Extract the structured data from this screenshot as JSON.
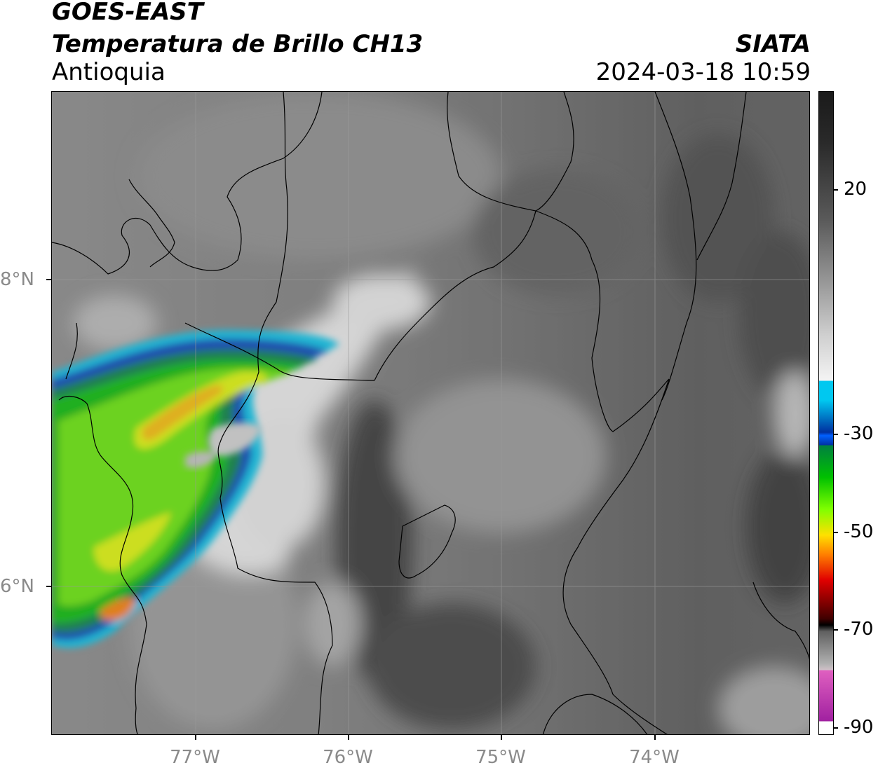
{
  "header": {
    "satellite": "GOES-EAST",
    "product": "Temperatura de Brillo CH13",
    "region": "Antioquia",
    "agency": "SIATA",
    "datetime": "2024-03-18 10:59"
  },
  "map": {
    "lat_labels": [
      "8°N",
      "6°N"
    ],
    "lon_labels": [
      "77°W",
      "76°W",
      "75°W",
      "74°W"
    ],
    "lon_range": [
      -77.95,
      -73.0
    ],
    "lat_range": [
      5.0,
      9.2
    ],
    "gridlines": true
  },
  "colorbar": {
    "labels": [
      "20",
      "-30",
      "-50",
      "-70",
      "-90"
    ],
    "range": [
      -90,
      35
    ],
    "colors": {
      "warm": "#1a1a1a",
      "mid": "#9a9a9a",
      "cold_white": "#f4f4f4",
      "cyan": "#00c8f0",
      "blue": "#0030a0",
      "green": "#00c000",
      "lime": "#80ff00",
      "yellow": "#ffe000",
      "orange": "#ff8000",
      "red": "#e00000",
      "dark_red": "#400000",
      "black": "#000000",
      "pink": "#e060c0",
      "purple": "#a020a0"
    }
  }
}
